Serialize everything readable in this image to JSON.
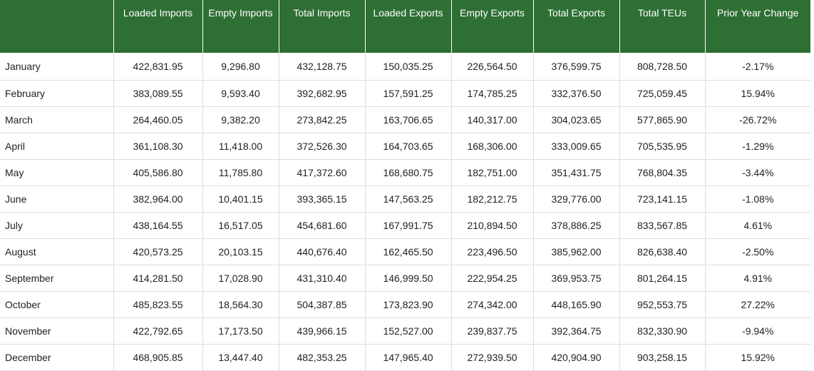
{
  "table": {
    "headers": [
      "",
      "Loaded Imports",
      "Empty Imports",
      "Total Imports",
      "Loaded Exports",
      "Empty Exports",
      "Total Exports",
      "Total TEUs",
      "Prior Year Change"
    ],
    "rows": [
      [
        "January",
        "422,831.95",
        "9,296.80",
        "432,128.75",
        "150,035.25",
        "226,564.50",
        "376,599.75",
        "808,728.50",
        "-2.17%"
      ],
      [
        "February",
        "383,089.55",
        "9,593.40",
        "392,682.95",
        "157,591.25",
        "174,785.25",
        "332,376.50",
        "725,059.45",
        "15.94%"
      ],
      [
        "March",
        "264,460.05",
        "9,382.20",
        "273,842.25",
        "163,706.65",
        "140,317.00",
        "304,023.65",
        "577,865.90",
        "-26.72%"
      ],
      [
        "April",
        "361,108.30",
        "11,418.00",
        "372,526.30",
        "164,703.65",
        "168,306.00",
        "333,009.65",
        "705,535.95",
        "-1.29%"
      ],
      [
        "May",
        "405,586.80",
        "11,785.80",
        "417,372.60",
        "168,680.75",
        "182,751.00",
        "351,431.75",
        "768,804.35",
        "-3.44%"
      ],
      [
        "June",
        "382,964.00",
        "10,401.15",
        "393,365.15",
        "147,563.25",
        "182,212.75",
        "329,776.00",
        "723,141.15",
        "-1.08%"
      ],
      [
        "July",
        "438,164.55",
        "16,517.05",
        "454,681.60",
        "167,991.75",
        "210,894.50",
        "378,886.25",
        "833,567.85",
        "4.61%"
      ],
      [
        "August",
        "420,573.25",
        "20,103.15",
        "440,676.40",
        "162,465.50",
        "223,496.50",
        "385,962.00",
        "826,638.40",
        "-2.50%"
      ],
      [
        "September",
        "414,281.50",
        "17,028.90",
        "431,310.40",
        "146,999.50",
        "222,954.25",
        "369,953.75",
        "801,264.15",
        "4.91%"
      ],
      [
        "October",
        "485,823.55",
        "18,564.30",
        "504,387.85",
        "173,823.90",
        "274,342.00",
        "448,165.90",
        "952,553.75",
        "27.22%"
      ],
      [
        "November",
        "422,792.65",
        "17,173.50",
        "439,966.15",
        "152,527.00",
        "239,837.75",
        "392,364.75",
        "832,330.90",
        "-9.94%"
      ],
      [
        "December",
        "468,905.85",
        "13,447.40",
        "482,353.25",
        "147,965.40",
        "272,939.50",
        "420,904.90",
        "903,258.15",
        "15.92%"
      ]
    ]
  },
  "colors": {
    "header_bg": "#2e6f34",
    "header_text": "#ffffff",
    "row_border": "#dddddd"
  }
}
